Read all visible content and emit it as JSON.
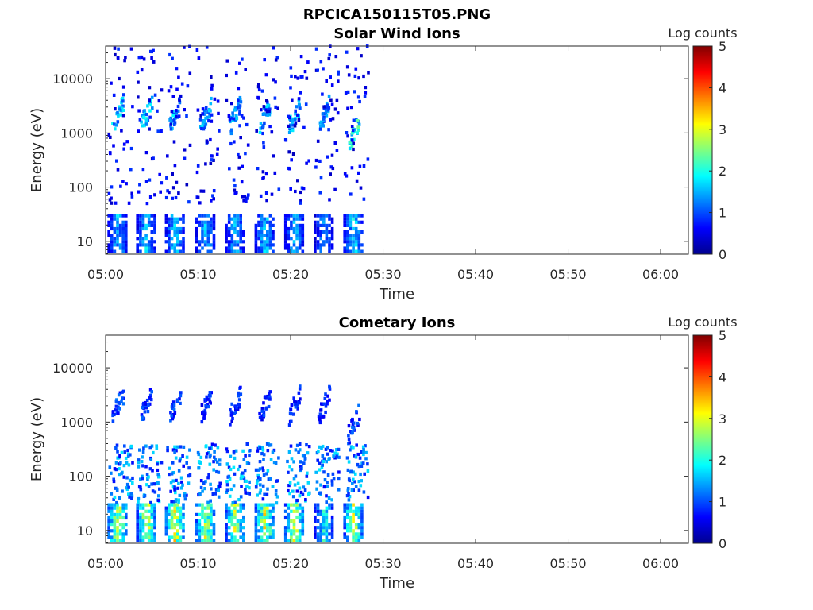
{
  "figure_title": "RPCICA150115T05.PNG",
  "chart_data": [
    {
      "type": "heatmap",
      "title": "Solar Wind Ions",
      "xlabel": "Time",
      "ylabel": "Energy (eV)",
      "x_ticks": [
        "05:00",
        "05:10",
        "05:20",
        "05:30",
        "05:40",
        "05:50",
        "06:00"
      ],
      "x_range_minutes": [
        0,
        63
      ],
      "y_ticks": [
        "10",
        "100",
        "1000",
        "10000"
      ],
      "y_scale": "log",
      "y_range": [
        5.8,
        40000
      ],
      "colorbar_label": "Log counts",
      "colorbar_ticks": [
        "0",
        "1",
        "2",
        "3",
        "4",
        "5"
      ],
      "colorbar_range": [
        0,
        5
      ],
      "data_extent_minutes": [
        0,
        27
      ],
      "bursts": [
        {
          "t": 0.2,
          "low": 1.6,
          "mid": 1.9,
          "mid_e": 2200
        },
        {
          "t": 3.3,
          "low": 1.7,
          "mid": 1.9,
          "mid_e": 2200
        },
        {
          "t": 6.4,
          "low": 1.8,
          "mid": 1.8,
          "mid_e": 2100
        },
        {
          "t": 9.7,
          "low": 1.6,
          "mid": 1.7,
          "mid_e": 2000
        },
        {
          "t": 12.9,
          "low": 1.6,
          "mid": 1.8,
          "mid_e": 2100
        },
        {
          "t": 16.1,
          "low": 1.7,
          "mid": 1.8,
          "mid_e": 2100
        },
        {
          "t": 19.3,
          "low": 1.6,
          "mid": 1.7,
          "mid_e": 2000
        },
        {
          "t": 22.5,
          "low": 1.4,
          "mid": 1.6,
          "mid_e": 2200
        },
        {
          "t": 25.7,
          "low": 1.9,
          "mid": 2.4,
          "mid_e": 1000
        }
      ]
    },
    {
      "type": "heatmap",
      "title": "Cometary Ions",
      "xlabel": "Time",
      "ylabel": "Energy (eV)",
      "x_ticks": [
        "05:00",
        "05:10",
        "05:20",
        "05:30",
        "05:40",
        "05:50",
        "06:00"
      ],
      "x_range_minutes": [
        0,
        63
      ],
      "y_ticks": [
        "10",
        "100",
        "1000",
        "10000"
      ],
      "y_scale": "log",
      "y_range": [
        5.8,
        40000
      ],
      "colorbar_label": "Log counts",
      "colorbar_ticks": [
        "0",
        "1",
        "2",
        "3",
        "4",
        "5"
      ],
      "colorbar_range": [
        0,
        5
      ],
      "data_extent_minutes": [
        0,
        27
      ],
      "bursts": [
        {
          "t": 0.2,
          "low": 3.0,
          "mid": 1.2,
          "mid_e": 2000
        },
        {
          "t": 3.3,
          "low": 3.0,
          "mid": 1.1,
          "mid_e": 2000
        },
        {
          "t": 6.4,
          "low": 3.1,
          "mid": 1.1,
          "mid_e": 2000
        },
        {
          "t": 9.7,
          "low": 2.9,
          "mid": 1.0,
          "mid_e": 2000
        },
        {
          "t": 12.9,
          "low": 2.9,
          "mid": 1.0,
          "mid_e": 2000
        },
        {
          "t": 16.1,
          "low": 3.0,
          "mid": 1.0,
          "mid_e": 2000
        },
        {
          "t": 19.3,
          "low": 3.0,
          "mid": 1.0,
          "mid_e": 2000
        },
        {
          "t": 22.5,
          "low": 2.0,
          "mid": 1.0,
          "mid_e": 2000
        },
        {
          "t": 25.7,
          "low": 2.9,
          "mid": 1.2,
          "mid_e": 900
        }
      ]
    }
  ]
}
